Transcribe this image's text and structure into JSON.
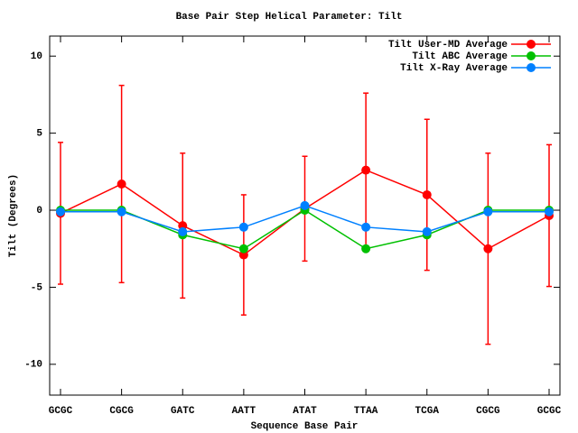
{
  "chart_data": {
    "type": "line",
    "title": "Base Pair Step Helical Parameter: Tilt",
    "x_label": "Sequence Base Pair",
    "y_label": "Tilt (Degrees)",
    "categories": [
      "GCGC",
      "CGCG",
      "GATC",
      "AATT",
      "ATAT",
      "TTAA",
      "TCGA",
      "CGCG",
      "GCGC"
    ],
    "ylim": [
      -12,
      11.3
    ],
    "yticks": [
      -10,
      -5,
      0,
      5,
      10
    ],
    "legend": "top-right",
    "series": [
      {
        "name": "Tilt User-MD Average",
        "color": "#ff0000",
        "values": [
          -0.2,
          1.7,
          -1.0,
          -2.9,
          0.1,
          2.6,
          1.0,
          -2.5,
          -0.35
        ],
        "errors": [
          4.6,
          6.4,
          4.7,
          3.9,
          3.4,
          5.0,
          4.9,
          6.2,
          4.6
        ]
      },
      {
        "name": "Tilt ABC Average",
        "color": "#00c000",
        "values": [
          0,
          0,
          -1.6,
          -2.5,
          0,
          -2.5,
          -1.6,
          0,
          0
        ]
      },
      {
        "name": "Tilt X-Ray Average",
        "color": "#0080ff",
        "values": [
          -0.1,
          -0.1,
          -1.4,
          -1.1,
          0.3,
          -1.1,
          -1.4,
          -0.1,
          -0.1
        ]
      }
    ]
  }
}
